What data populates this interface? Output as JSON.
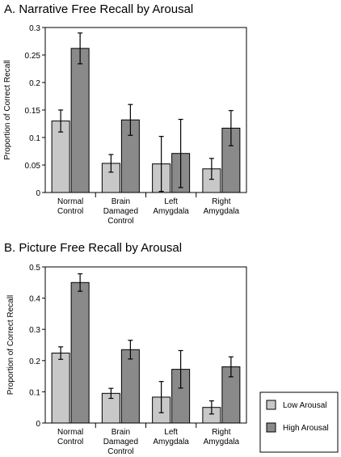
{
  "colors": {
    "low": "#c8c8c8",
    "high": "#8a8a8a",
    "axis": "#000000"
  },
  "legend": {
    "items": [
      "Low Arousal",
      "High Arousal"
    ]
  },
  "chart_data": [
    {
      "type": "bar",
      "title": "A. Narrative Free Recall by Arousal",
      "ylabel": "Proportion of Correct Recall",
      "xlabel": "",
      "ylim": [
        0,
        0.3
      ],
      "yticks": [
        "0",
        "0.05",
        "0.1",
        "0.15",
        "0.2",
        "0.25",
        "0.3"
      ],
      "categories": [
        [
          "Normal",
          "Control"
        ],
        [
          "Brain",
          "Damaged",
          "Control"
        ],
        [
          "Left",
          "Amygdala"
        ],
        [
          "Right",
          "Amygdala"
        ]
      ],
      "series": [
        {
          "name": "Low Arousal",
          "values": [
            0.13,
            0.053,
            0.052,
            0.043
          ],
          "errors": [
            0.02,
            0.016,
            0.05,
            0.019
          ]
        },
        {
          "name": "High Arousal",
          "values": [
            0.262,
            0.132,
            0.071,
            0.117
          ],
          "errors": [
            0.028,
            0.028,
            0.062,
            0.032
          ]
        }
      ]
    },
    {
      "type": "bar",
      "title": "B. Picture Free Recall by Arousal",
      "ylabel": "Proportion of Correct Recall",
      "xlabel": "",
      "ylim": [
        0,
        0.5
      ],
      "yticks": [
        "0",
        "0.1",
        "0.2",
        "0.3",
        "0.4",
        "0.5"
      ],
      "categories": [
        [
          "Normal",
          "Control"
        ],
        [
          "Brain",
          "Damaged",
          "Control"
        ],
        [
          "Left",
          "Amygdala"
        ],
        [
          "Right",
          "Amygdala"
        ]
      ],
      "series": [
        {
          "name": "Low Arousal",
          "values": [
            0.224,
            0.095,
            0.083,
            0.05
          ],
          "errors": [
            0.02,
            0.016,
            0.05,
            0.021
          ]
        },
        {
          "name": "High Arousal",
          "values": [
            0.45,
            0.235,
            0.172,
            0.18
          ],
          "errors": [
            0.028,
            0.03,
            0.06,
            0.032
          ]
        }
      ]
    }
  ]
}
